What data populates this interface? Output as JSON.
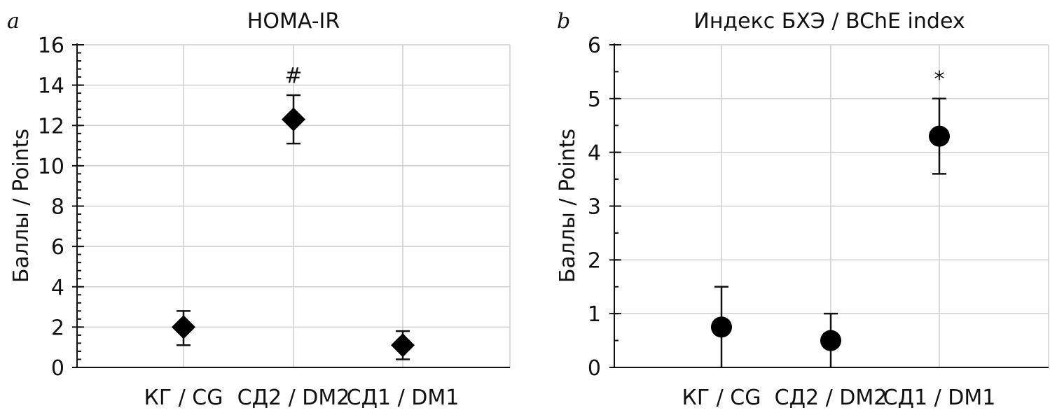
{
  "chart_data": [
    {
      "type": "scatter",
      "panel_letter": "a",
      "title": "HOMA-IR",
      "ylabel": "Баллы / Points",
      "xlabel": "",
      "categories": [
        "КГ / CG",
        "СД2 / DM2",
        "СД1 / DM1"
      ],
      "values": [
        2.0,
        12.3,
        1.1
      ],
      "error_low": [
        1.1,
        11.1,
        0.4
      ],
      "error_high": [
        2.8,
        13.5,
        1.8
      ],
      "annotations": [
        "",
        "#",
        ""
      ],
      "marker": "diamond",
      "ylim": [
        0,
        16
      ],
      "yticks": [
        0,
        2,
        4,
        6,
        8,
        10,
        12,
        14,
        16
      ],
      "y_minor_step": 0.4,
      "grid": true,
      "legend": "none"
    },
    {
      "type": "scatter",
      "panel_letter": "b",
      "title": "Индекс БХЭ / BChE index",
      "ylabel": "Баллы / Points",
      "xlabel": "",
      "categories": [
        "КГ / CG",
        "СД2 / DM2",
        "СД1 / DM1"
      ],
      "values": [
        0.75,
        0.5,
        4.3
      ],
      "error_low": [
        0.0,
        0.0,
        3.6
      ],
      "error_high": [
        1.5,
        1.0,
        5.0
      ],
      "annotations": [
        "",
        "",
        "*"
      ],
      "marker": "circle",
      "ylim": [
        0,
        6
      ],
      "yticks": [
        0,
        1,
        2,
        3,
        4,
        5,
        6
      ],
      "y_minor_step": 0.5,
      "grid": true,
      "legend": "none"
    }
  ]
}
